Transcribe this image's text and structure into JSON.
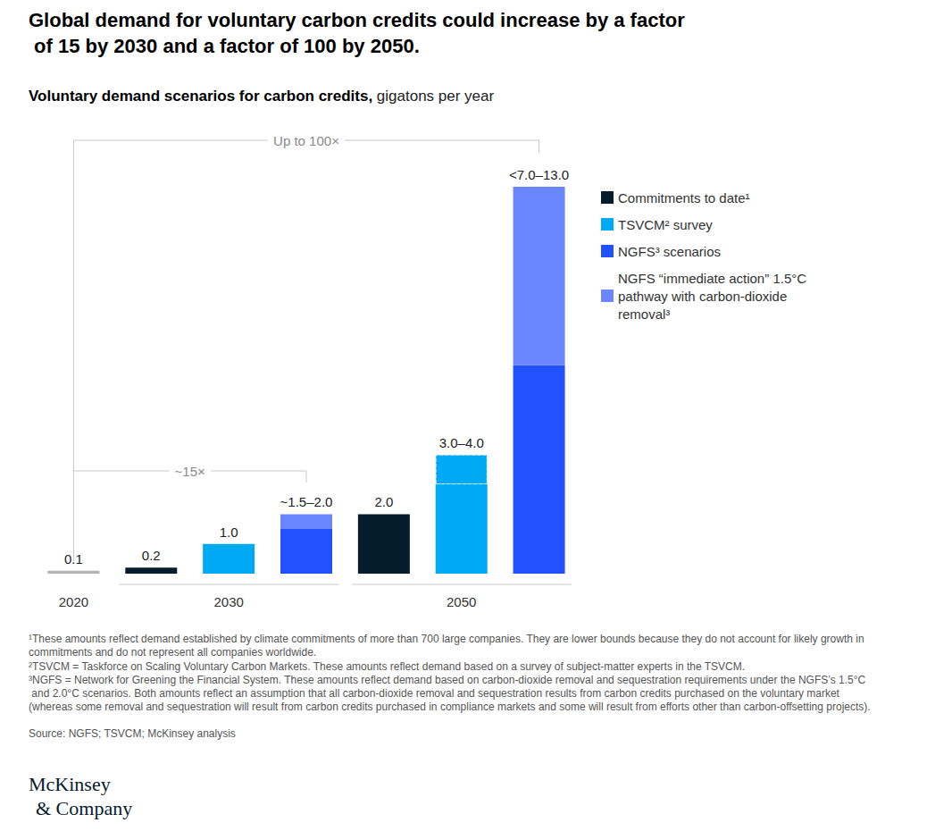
{
  "chart_data": {
    "type": "bar",
    "title": "Global demand for voluntary carbon credits could increase by a factor of 15 by 2030 and a factor of 100 by 2050.",
    "subtitle": "Voluntary demand scenarios for carbon credits, gigatons per year",
    "categories": [
      "2020",
      null,
      "2030",
      null,
      null,
      "2050",
      null
    ],
    "series": [
      {
        "color": "#b3b3b3",
        "values": [
          0.1,
          null,
          null,
          null,
          null,
          null,
          null
        ],
        "value_labels": [
          "0.1",
          null,
          null,
          null,
          null,
          null,
          null
        ]
      },
      {
        "name": "Commitments to date¹",
        "color": "#051c2c",
        "values": [
          null,
          0.2,
          null,
          null,
          2.0,
          null,
          null
        ],
        "value_labels": [
          null,
          "0.2",
          null,
          null,
          "2.0",
          null,
          null
        ]
      },
      {
        "name": "TSVCM² survey",
        "color": "#00a9f4",
        "values": [
          null,
          null,
          1.0,
          null,
          null,
          3.0,
          null
        ],
        "value_labels": [
          null,
          null,
          "1.0",
          null,
          null,
          "3.0–4.0",
          null
        ]
      },
      {
        "color": "#00a9f4",
        "line_style": "dashed",
        "values": [
          null,
          null,
          null,
          null,
          null,
          1.0,
          null
        ]
      },
      {
        "name": "NGFS³ scenarios",
        "color": "#2251ff",
        "values": [
          null,
          null,
          null,
          1.5,
          null,
          null,
          7.0
        ],
        "value_labels": [
          null,
          null,
          null,
          "~1.5–2.0",
          null,
          null,
          "<7.0–13.0"
        ]
      },
      {
        "name": "NGFS “immediate action” 1.5°C pathway with carbon-dioxide removal³",
        "color": "#6a87ff",
        "values": [
          null,
          null,
          null,
          0.5,
          null,
          null,
          6.0
        ]
      }
    ],
    "ylim": [
      0,
      13
    ],
    "stacked": true,
    "data_labels": true,
    "grid": false,
    "tick_labels": "x",
    "legend": "right",
    "annotations": [
      "Up to 100×",
      "~15×"
    ],
    "footnotes": [
      "¹These amounts reflect demand established by climate commitments of more than 700 large companies. They are lower bounds because they do not account for likely growth in commitments and do not represent all companies worldwide.",
      "²TSVCM = Taskforce on Scaling Voluntary Carbon Markets. These amounts reflect demand based on a survey of subject-matter experts in the TSVCM.",
      "³NGFS = Network for Greening the Financial System. These amounts reflect demand based on carbon-dioxide removal and sequestration requirements under the NGFS’s 1.5°C and 2.0°C scenarios. Both amounts reflect an assumption that all carbon-dioxide removal and sequestration results from carbon credits purchased on the voluntary market (whereas some removal and sequestration will result from carbon credits purchased in compliance markets and some will result from efforts other than carbon-offsetting projects)."
    ],
    "source": "Source: NGFS; TSVCM; McKinsey analysis",
    "logo": [
      "McKinsey",
      "& Company"
    ]
  }
}
